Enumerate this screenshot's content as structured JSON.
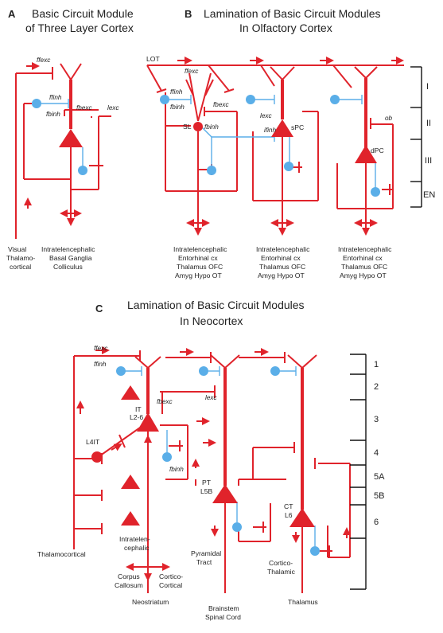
{
  "panel_a": {
    "letter": "A",
    "title_1": "Basic Circuit Module",
    "title_2": "of Three Layer Cortex",
    "ffexc": "ffexc",
    "ffinh": "ffinh",
    "fbinh": "fbinh",
    "fbexc": "fbexc",
    "lexc": "lexc",
    "out_visual_1": "Visual",
    "out_visual_2": "Thalamo-",
    "out_visual_3": "cortical",
    "out_target_1": "Intratelencephalic",
    "out_target_2": "Basal Ganglia",
    "out_target_3": "Colliculus"
  },
  "panel_b": {
    "letter": "B",
    "title_1": "Lamination of Basic Circuit Modules",
    "title_2": "In Olfactory Cortex",
    "lot": "LOT",
    "ffexc": "ffexc",
    "ffinh": "ffinh",
    "fbinh_1": "fbinh",
    "fbexc": "fbexc",
    "fbinh_2": "fbinh",
    "lexc": "lexc",
    "ifinh": "ifinh",
    "ob": "ob",
    "cell_sl": "SL",
    "cell_spc": "sPC",
    "cell_dpc": "dPC",
    "layers": [
      "I",
      "II",
      "III",
      "EN"
    ],
    "targets": [
      "Intratelencephalic",
      "Entorhinal cx",
      "Thalamus OFC",
      "Amyg Hypo OT"
    ]
  },
  "panel_c": {
    "letter": "C",
    "title_1": "Lamination of Basic Circuit Modules",
    "title_2": "In Neocortex",
    "ffexc": "ffexc",
    "ffinh": "ffinh",
    "fbexc": "fbexc",
    "lexc": "lexc",
    "fbinh": "fbinh",
    "cell_it_1": "IT",
    "cell_it_2": "L2-6",
    "cell_l4it": "L4IT",
    "cell_pt_1": "PT",
    "cell_pt_2": "L5B",
    "cell_ct_1": "CT",
    "cell_ct_2": "L6",
    "layers": [
      "1",
      "2",
      "3",
      "4",
      "5A",
      "5B",
      "6"
    ],
    "thalamocortical": "Thalamocortical",
    "intratel_1": "Intratelen-",
    "intratel_2": "cephalic",
    "corpus_1": "Corpus",
    "corpus_2": "Callosum",
    "cortico_1": "Cortico-",
    "cortico_2": "Cortical",
    "neostriatum": "Neostriatum",
    "pyr_1": "Pyramidal",
    "pyr_2": "Tract",
    "brainstem_1": "Brainstem",
    "brainstem_2": "Spinal Cord",
    "ctt_1": "Cortico-",
    "ctt_2": "Thalamic",
    "thalamus": "Thalamus"
  },
  "colors": {
    "excitatory": "#e0232b",
    "inhibitory": "#5aaee8",
    "text": "#222222",
    "layer_scale": "#111111"
  }
}
